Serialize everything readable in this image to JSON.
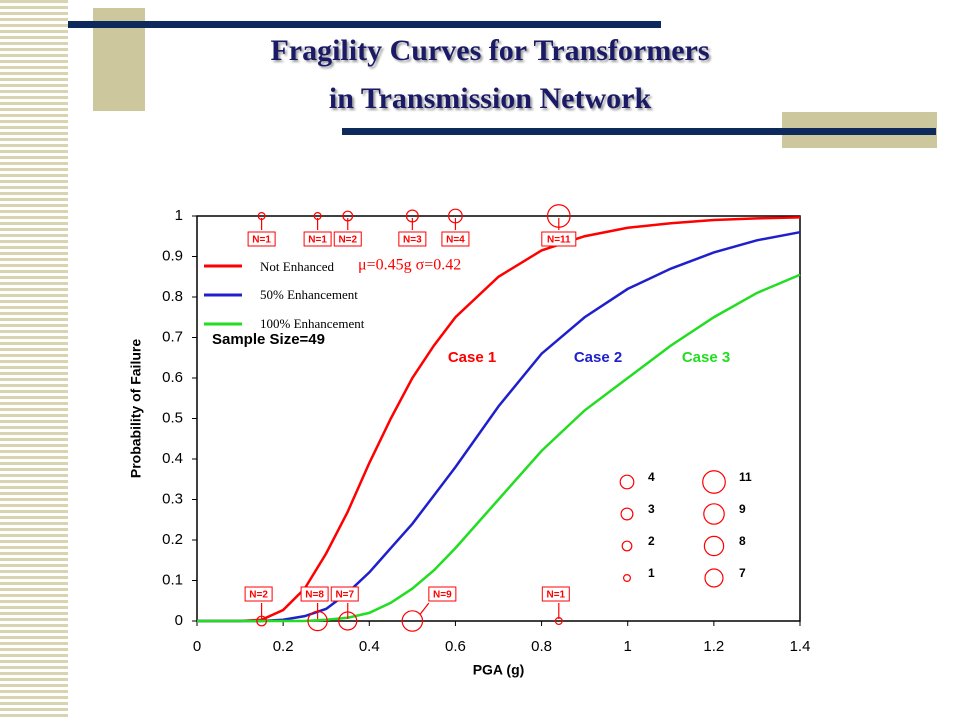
{
  "title_lines": [
    "Fragility Curves for Transformers",
    "in Transmission Network"
  ],
  "chart_data": {
    "type": "line",
    "x_label": "PGA (g)",
    "y_label": "Probability of Failure",
    "xlim": [
      0,
      1.4
    ],
    "ylim": [
      0,
      1
    ],
    "xticks": [
      0,
      0.2,
      0.4,
      0.6,
      0.8,
      1,
      1.2,
      1.4
    ],
    "yticks": [
      0,
      0.1,
      0.2,
      0.3,
      0.4,
      0.5,
      0.6,
      0.7,
      0.8,
      0.9,
      1
    ],
    "x": [
      0,
      0.1,
      0.15,
      0.2,
      0.25,
      0.3,
      0.35,
      0.4,
      0.45,
      0.5,
      0.55,
      0.6,
      0.7,
      0.8,
      0.9,
      1,
      1.1,
      1.2,
      1.3,
      1.4
    ],
    "series": [
      {
        "name": "Not Enhanced",
        "color": "#ff0000",
        "case": "Case 1",
        "values": [
          0,
          0,
          0.003,
          0.027,
          0.08,
          0.167,
          0.27,
          0.39,
          0.5,
          0.6,
          0.68,
          0.75,
          0.85,
          0.915,
          0.95,
          0.971,
          0.982,
          0.99,
          0.994,
          0.9965
        ]
      },
      {
        "name": "50% Enhancement",
        "color": "#1f1fcc",
        "case": "Case 2",
        "values": [
          0,
          0,
          0,
          0.003,
          0.012,
          0.03,
          0.07,
          0.12,
          0.18,
          0.24,
          0.31,
          0.38,
          0.53,
          0.66,
          0.75,
          0.82,
          0.87,
          0.91,
          0.94,
          0.96
        ]
      },
      {
        "name": "100% Enhancement",
        "color": "#22dd22",
        "case": "Case 3",
        "values": [
          0,
          0,
          0,
          0,
          0,
          0.003,
          0.008,
          0.02,
          0.045,
          0.08,
          0.125,
          0.18,
          0.3,
          0.42,
          0.52,
          0.6,
          0.68,
          0.75,
          0.81,
          0.855
        ]
      }
    ],
    "parameters": "μ=0.45g  σ=0.42",
    "sample_size": "Sample Size=49",
    "observations": [
      {
        "x": 0.15,
        "y": 1,
        "n": 1,
        "label": "N=1"
      },
      {
        "x": 0.28,
        "y": 1,
        "n": 1,
        "label": "N=1"
      },
      {
        "x": 0.35,
        "y": 1,
        "n": 2,
        "label": "N=2"
      },
      {
        "x": 0.5,
        "y": 1,
        "n": 3,
        "label": "N=3"
      },
      {
        "x": 0.6,
        "y": 1,
        "n": 4,
        "label": "N=4"
      },
      {
        "x": 0.84,
        "y": 1,
        "n": 11,
        "label": "N=11"
      },
      {
        "x": 0.15,
        "y": 0,
        "n": 2,
        "label": "N=2"
      },
      {
        "x": 0.28,
        "y": 0,
        "n": 8,
        "label": "N=8"
      },
      {
        "x": 0.35,
        "y": 0,
        "n": 7,
        "label": "N=7"
      },
      {
        "x": 0.5,
        "y": 0,
        "n": 9,
        "label": "N=9"
      },
      {
        "x": 0.84,
        "y": 0,
        "n": 1,
        "label": "N=1"
      }
    ],
    "size_legend": [
      4,
      3,
      2,
      1,
      11,
      9,
      8,
      7
    ]
  }
}
